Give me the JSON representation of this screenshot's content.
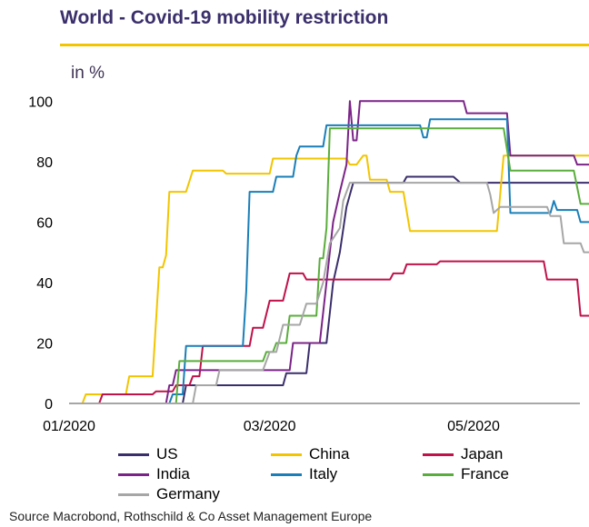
{
  "title": "World - Covid-19 mobility  restriction",
  "unit": "in %",
  "source": "Source Macrobond,  Rothschild & Co Asset Management  Europe",
  "chart_data": {
    "type": "line",
    "title": "World - Covid-19 mobility  restriction",
    "ylabel": "in %",
    "xlabel": "",
    "ylim": [
      0,
      110
    ],
    "y_ticks": [
      0,
      20,
      40,
      60,
      80,
      100
    ],
    "x_tick_labels": [
      "01/2020",
      "03/2020",
      "05/2020"
    ],
    "x_tick_dates": [
      "2020-01-01",
      "2020-03-01",
      "2020-05-01"
    ],
    "xlim": [
      "2020-01-01",
      "2020-06-10"
    ],
    "grid": false,
    "legend_position": "bottom",
    "series": [
      {
        "name": "US",
        "color": "#3b2f6b",
        "points": [
          [
            "2020-01-01",
            0
          ],
          [
            "2020-02-04",
            0
          ],
          [
            "2020-02-05",
            6
          ],
          [
            "2020-03-05",
            6
          ],
          [
            "2020-03-06",
            10
          ],
          [
            "2020-03-12",
            10
          ],
          [
            "2020-03-13",
            20
          ],
          [
            "2020-03-18",
            20
          ],
          [
            "2020-03-19",
            30
          ],
          [
            "2020-03-20",
            40
          ],
          [
            "2020-03-22",
            50
          ],
          [
            "2020-03-24",
            65
          ],
          [
            "2020-03-26",
            73
          ],
          [
            "2020-04-10",
            73
          ],
          [
            "2020-04-11",
            75
          ],
          [
            "2020-04-25",
            75
          ],
          [
            "2020-04-27",
            73
          ],
          [
            "2020-06-10",
            73
          ]
        ]
      },
      {
        "name": "China",
        "color": "#f2c500",
        "points": [
          [
            "2020-01-01",
            0
          ],
          [
            "2020-01-05",
            0
          ],
          [
            "2020-01-06",
            3
          ],
          [
            "2020-01-10",
            3
          ],
          [
            "2020-01-11",
            3
          ],
          [
            "2020-01-18",
            3
          ],
          [
            "2020-01-19",
            9
          ],
          [
            "2020-01-26",
            9
          ],
          [
            "2020-01-28",
            45
          ],
          [
            "2020-01-29",
            45
          ],
          [
            "2020-01-30",
            49
          ],
          [
            "2020-01-31",
            70
          ],
          [
            "2020-02-05",
            70
          ],
          [
            "2020-02-07",
            77
          ],
          [
            "2020-02-16",
            77
          ],
          [
            "2020-02-17",
            76
          ],
          [
            "2020-03-01",
            76
          ],
          [
            "2020-03-02",
            81
          ],
          [
            "2020-03-24",
            81
          ],
          [
            "2020-03-25",
            79
          ],
          [
            "2020-03-27",
            79
          ],
          [
            "2020-03-29",
            82
          ],
          [
            "2020-03-30",
            82
          ],
          [
            "2020-03-31",
            74
          ],
          [
            "2020-04-05",
            74
          ],
          [
            "2020-04-06",
            70
          ],
          [
            "2020-04-10",
            70
          ],
          [
            "2020-04-12",
            57
          ],
          [
            "2020-05-08",
            57
          ],
          [
            "2020-05-10",
            82
          ],
          [
            "2020-06-10",
            82
          ]
        ]
      },
      {
        "name": "Japan",
        "color": "#c0124b",
        "points": [
          [
            "2020-01-01",
            0
          ],
          [
            "2020-01-10",
            0
          ],
          [
            "2020-01-11",
            3
          ],
          [
            "2020-01-26",
            3
          ],
          [
            "2020-01-27",
            4
          ],
          [
            "2020-02-01",
            4
          ],
          [
            "2020-02-02",
            6
          ],
          [
            "2020-02-06",
            6
          ],
          [
            "2020-02-07",
            9
          ],
          [
            "2020-02-09",
            9
          ],
          [
            "2020-02-10",
            19
          ],
          [
            "2020-02-24",
            19
          ],
          [
            "2020-02-25",
            25
          ],
          [
            "2020-02-28",
            25
          ],
          [
            "2020-03-01",
            34
          ],
          [
            "2020-03-05",
            34
          ],
          [
            "2020-03-07",
            43
          ],
          [
            "2020-03-11",
            43
          ],
          [
            "2020-03-12",
            41
          ],
          [
            "2020-04-06",
            41
          ],
          [
            "2020-04-07",
            43
          ],
          [
            "2020-04-10",
            43
          ],
          [
            "2020-04-11",
            46
          ],
          [
            "2020-04-20",
            46
          ],
          [
            "2020-04-21",
            47
          ],
          [
            "2020-05-22",
            47
          ],
          [
            "2020-05-23",
            41
          ],
          [
            "2020-06-01",
            41
          ],
          [
            "2020-06-02",
            29
          ],
          [
            "2020-06-10",
            29
          ]
        ]
      },
      {
        "name": "India",
        "color": "#7b2487",
        "points": [
          [
            "2020-01-01",
            0
          ],
          [
            "2020-01-30",
            0
          ],
          [
            "2020-01-31",
            6
          ],
          [
            "2020-02-01",
            6
          ],
          [
            "2020-02-02",
            11
          ],
          [
            "2020-03-07",
            11
          ],
          [
            "2020-03-08",
            20
          ],
          [
            "2020-03-16",
            20
          ],
          [
            "2020-03-18",
            40
          ],
          [
            "2020-03-20",
            60
          ],
          [
            "2020-03-22",
            70
          ],
          [
            "2020-03-24",
            79
          ],
          [
            "2020-03-25",
            100
          ],
          [
            "2020-03-26",
            87
          ],
          [
            "2020-03-27",
            87
          ],
          [
            "2020-03-28",
            100
          ],
          [
            "2020-04-28",
            100
          ],
          [
            "2020-04-29",
            96
          ],
          [
            "2020-05-11",
            96
          ],
          [
            "2020-05-12",
            82
          ],
          [
            "2020-05-31",
            82
          ],
          [
            "2020-06-01",
            79
          ],
          [
            "2020-06-10",
            79
          ]
        ]
      },
      {
        "name": "Italy",
        "color": "#1a7fb8",
        "points": [
          [
            "2020-01-01",
            0
          ],
          [
            "2020-01-31",
            0
          ],
          [
            "2020-02-01",
            3
          ],
          [
            "2020-02-04",
            3
          ],
          [
            "2020-02-05",
            19
          ],
          [
            "2020-02-22",
            19
          ],
          [
            "2020-02-23",
            37
          ],
          [
            "2020-02-24",
            70
          ],
          [
            "2020-03-02",
            70
          ],
          [
            "2020-03-03",
            75
          ],
          [
            "2020-03-08",
            75
          ],
          [
            "2020-03-09",
            82
          ],
          [
            "2020-03-10",
            85
          ],
          [
            "2020-03-17",
            85
          ],
          [
            "2020-03-18",
            92
          ],
          [
            "2020-04-15",
            92
          ],
          [
            "2020-04-16",
            88
          ],
          [
            "2020-04-17",
            88
          ],
          [
            "2020-04-18",
            94
          ],
          [
            "2020-05-11",
            94
          ],
          [
            "2020-05-12",
            63
          ],
          [
            "2020-05-24",
            63
          ],
          [
            "2020-05-25",
            67
          ],
          [
            "2020-05-26",
            64
          ],
          [
            "2020-06-01",
            64
          ],
          [
            "2020-06-02",
            60
          ],
          [
            "2020-06-10",
            60
          ]
        ]
      },
      {
        "name": "France",
        "color": "#5aad3c",
        "points": [
          [
            "2020-01-01",
            0
          ],
          [
            "2020-02-02",
            0
          ],
          [
            "2020-02-03",
            14
          ],
          [
            "2020-02-28",
            14
          ],
          [
            "2020-02-29",
            17
          ],
          [
            "2020-03-02",
            17
          ],
          [
            "2020-03-03",
            20
          ],
          [
            "2020-03-06",
            20
          ],
          [
            "2020-03-07",
            29
          ],
          [
            "2020-03-15",
            29
          ],
          [
            "2020-03-16",
            48
          ],
          [
            "2020-03-17",
            48
          ],
          [
            "2020-03-18",
            58
          ],
          [
            "2020-03-19",
            91
          ],
          [
            "2020-05-10",
            91
          ],
          [
            "2020-05-12",
            77
          ],
          [
            "2020-05-31",
            77
          ],
          [
            "2020-06-02",
            66
          ],
          [
            "2020-06-10",
            66
          ]
        ]
      },
      {
        "name": "Germany",
        "color": "#a6a6a6",
        "points": [
          [
            "2020-01-01",
            0
          ],
          [
            "2020-02-07",
            0
          ],
          [
            "2020-02-08",
            6
          ],
          [
            "2020-02-14",
            6
          ],
          [
            "2020-02-15",
            11
          ],
          [
            "2020-02-28",
            11
          ],
          [
            "2020-03-01",
            17
          ],
          [
            "2020-03-03",
            17
          ],
          [
            "2020-03-05",
            26
          ],
          [
            "2020-03-10",
            26
          ],
          [
            "2020-03-12",
            33
          ],
          [
            "2020-03-15",
            33
          ],
          [
            "2020-03-17",
            40
          ],
          [
            "2020-03-19",
            53
          ],
          [
            "2020-03-22",
            58
          ],
          [
            "2020-03-23",
            67
          ],
          [
            "2020-03-25",
            73
          ],
          [
            "2020-05-05",
            73
          ],
          [
            "2020-05-06",
            69
          ],
          [
            "2020-05-07",
            63
          ],
          [
            "2020-05-09",
            65
          ],
          [
            "2020-05-23",
            65
          ],
          [
            "2020-05-24",
            62
          ],
          [
            "2020-05-27",
            62
          ],
          [
            "2020-05-28",
            53
          ],
          [
            "2020-06-02",
            53
          ],
          [
            "2020-06-03",
            50
          ],
          [
            "2020-06-10",
            50
          ]
        ]
      }
    ]
  }
}
